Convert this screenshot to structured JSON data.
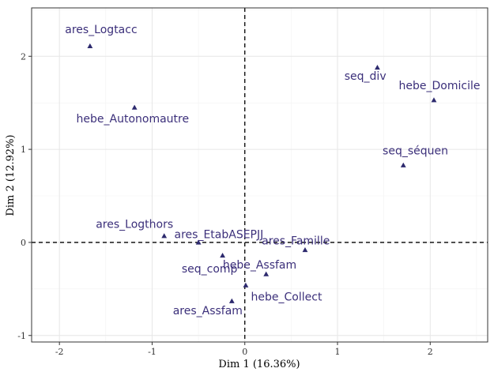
{
  "chart_data": {
    "type": "scatter",
    "xlabel": "Dim 1 (16.36%)",
    "ylabel": "Dim 2 (12.92%)",
    "xlim": [
      -2.3,
      2.62
    ],
    "ylim": [
      -1.07,
      2.52
    ],
    "x_ticks": [
      -2,
      -1,
      0,
      1,
      2
    ],
    "y_ticks": [
      -1,
      0,
      1,
      2
    ],
    "grid": true,
    "reference_lines": {
      "x": 0,
      "y": 0,
      "style": "dashed"
    },
    "marker": "triangle",
    "point_color": "#2d2a6e",
    "label_color": "#3b2f7a",
    "points": [
      {
        "label": "ares_Logtacc",
        "x": -1.67,
        "y": 2.11,
        "label_dx": 0.12,
        "label_dy": 0.18
      },
      {
        "label": "hebe_Autonomautre",
        "x": -1.19,
        "y": 1.45,
        "label_dx": -0.02,
        "label_dy": -0.12
      },
      {
        "label": "seq_div",
        "x": 1.43,
        "y": 1.88,
        "label_dx": -0.13,
        "label_dy": -0.09
      },
      {
        "label": "hebe_Domicile",
        "x": 2.04,
        "y": 1.53,
        "label_dx": 0.06,
        "label_dy": 0.16
      },
      {
        "label": "seq_séquen",
        "x": 1.71,
        "y": 0.83,
        "label_dx": 0.13,
        "label_dy": 0.16
      },
      {
        "label": "ares_Logthors",
        "x": -0.87,
        "y": 0.07,
        "label_dx": -0.32,
        "label_dy": 0.13
      },
      {
        "label": "ares_EtabASEPJJ",
        "x": -0.5,
        "y": 0.0,
        "label_dx": 0.22,
        "label_dy": 0.09
      },
      {
        "label": "ares_Famille",
        "x": 0.65,
        "y": -0.08,
        "label_dx": -0.1,
        "label_dy": 0.1
      },
      {
        "label": "seq_comp",
        "x": -0.24,
        "y": -0.14,
        "label_dx": -0.14,
        "label_dy": -0.14
      },
      {
        "label": "hebe_Assfam",
        "x": 0.23,
        "y": -0.34,
        "label_dx": -0.07,
        "label_dy": 0.1
      },
      {
        "label": "hebe_Collect",
        "x": 0.01,
        "y": -0.46,
        "label_dx": 0.44,
        "label_dy": -0.12
      },
      {
        "label": "ares_Assfam",
        "x": -0.14,
        "y": -0.63,
        "label_dx": -0.26,
        "label_dy": -0.1
      }
    ]
  }
}
